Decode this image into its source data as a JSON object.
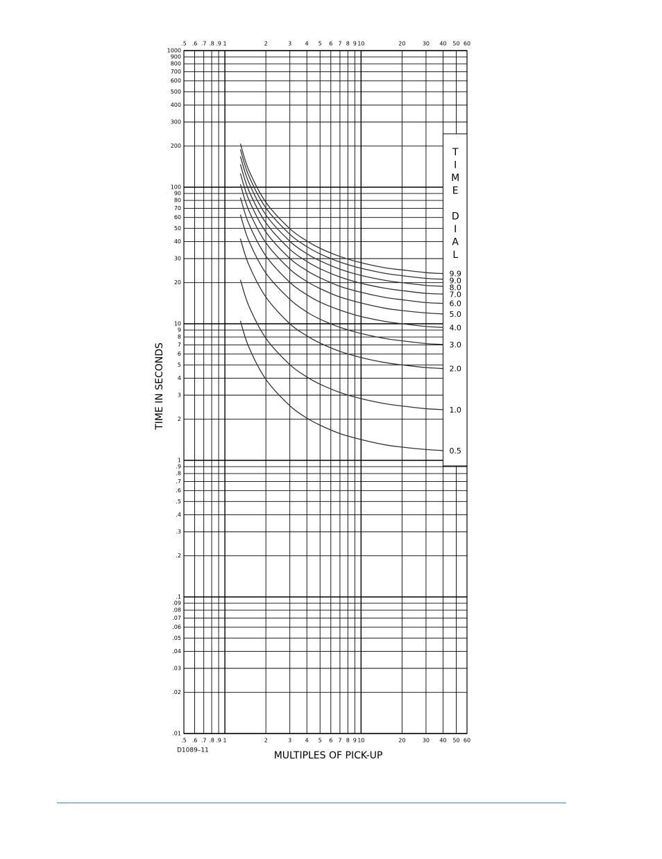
{
  "chart_data": {
    "type": "line",
    "xlabel": "MULTIPLES OF PICK-UP",
    "ylabel": "TIME IN SECONDS",
    "note": "D1089–11",
    "legend_title": "TIME DIAL",
    "log_x": true,
    "log_y": true,
    "grid": true,
    "xlim": [
      0.5,
      60
    ],
    "ylim": [
      0.01,
      1000
    ],
    "xticks": [
      {
        "value": 0.5,
        "label": ".5"
      },
      {
        "value": 0.6,
        "label": ".6"
      },
      {
        "value": 0.7,
        "label": ".7"
      },
      {
        "value": 0.8,
        "label": ".8"
      },
      {
        "value": 0.9,
        "label": ".9"
      },
      1,
      2,
      3,
      4,
      5,
      6,
      7,
      8,
      9,
      10,
      20,
      30,
      40,
      50,
      60
    ],
    "yticks": [
      {
        "value": 0.01,
        "label": ".01"
      },
      {
        "value": 0.02,
        "label": ".02"
      },
      {
        "value": 0.03,
        "label": ".03"
      },
      {
        "value": 0.04,
        "label": ".04"
      },
      {
        "value": 0.05,
        "label": ".05"
      },
      {
        "value": 0.06,
        "label": ".06"
      },
      {
        "value": 0.07,
        "label": ".07"
      },
      {
        "value": 0.08,
        "label": ".08"
      },
      {
        "value": 0.09,
        "label": ".09"
      },
      {
        "value": 0.1,
        "label": ".1"
      },
      {
        "value": 0.2,
        "label": ".2"
      },
      {
        "value": 0.3,
        "label": ".3"
      },
      {
        "value": 0.4,
        "label": ".4"
      },
      {
        "value": 0.5,
        "label": ".5"
      },
      {
        "value": 0.6,
        "label": ".6"
      },
      {
        "value": 0.7,
        "label": ".7"
      },
      {
        "value": 0.8,
        "label": ".8"
      },
      {
        "value": 0.9,
        "label": ".9"
      },
      1,
      2,
      3,
      4,
      5,
      6,
      7,
      8,
      9,
      10,
      20,
      30,
      40,
      50,
      60,
      70,
      80,
      90,
      100,
      200,
      300,
      400,
      500,
      600,
      700,
      800,
      900,
      1000
    ],
    "x": [
      1.3,
      1.5,
      2,
      3,
      4,
      5,
      7,
      10,
      15,
      20,
      30,
      40
    ],
    "series": [
      {
        "name": "0.5",
        "color": "#333333",
        "values": [
          10.5,
          6.74,
          3.92,
          2.51,
          2.04,
          1.81,
          1.57,
          1.42,
          1.3,
          1.25,
          1.2,
          1.18
        ]
      },
      {
        "name": "1.0",
        "color": "#333333",
        "values": [
          21.0,
          13.5,
          7.84,
          5.02,
          4.08,
          3.61,
          3.14,
          2.83,
          2.6,
          2.5,
          2.39,
          2.35
        ]
      },
      {
        "name": "2.0",
        "color": "#333333",
        "values": [
          42,
          27,
          15.7,
          10.0,
          8.16,
          7.22,
          6.28,
          5.66,
          5.2,
          5.0,
          4.78,
          4.7
        ]
      },
      {
        "name": "3.0",
        "color": "#333333",
        "values": [
          63,
          40.4,
          23.5,
          15.1,
          12.2,
          10.8,
          9.42,
          8.49,
          7.8,
          7.5,
          7.17,
          7.05
        ]
      },
      {
        "name": "4.0",
        "color": "#333333",
        "values": [
          84,
          53.9,
          31.4,
          20.1,
          16.3,
          14.4,
          12.6,
          11.3,
          10.4,
          10.0,
          9.56,
          9.4
        ]
      },
      {
        "name": "5.0",
        "color": "#333333",
        "values": [
          105,
          67.4,
          39.2,
          25.1,
          20.4,
          18.1,
          15.7,
          14.2,
          13.0,
          12.5,
          12.0,
          11.8
        ]
      },
      {
        "name": "6.0",
        "color": "#333333",
        "values": [
          126,
          80.9,
          47.0,
          30.1,
          24.5,
          21.7,
          18.8,
          17.0,
          15.6,
          15.0,
          14.3,
          14.1
        ]
      },
      {
        "name": "7.0",
        "color": "#333333",
        "values": [
          147,
          94.4,
          54.9,
          35.1,
          28.6,
          25.3,
          22.0,
          19.8,
          18.2,
          17.5,
          16.7,
          16.5
        ]
      },
      {
        "name": "8.0",
        "color": "#333333",
        "values": [
          168,
          108,
          62.7,
          40.2,
          32.6,
          28.9,
          25.1,
          22.6,
          20.8,
          20.0,
          19.1,
          18.8
        ]
      },
      {
        "name": "9.0",
        "color": "#333333",
        "values": [
          189,
          121,
          70.6,
          45.2,
          36.7,
          32.5,
          28.3,
          25.5,
          23.4,
          22.5,
          21.5,
          21.2
        ]
      },
      {
        "name": "9.9",
        "color": "#333333",
        "values": [
          208,
          133,
          77.6,
          49.7,
          40.4,
          35.7,
          31.1,
          28.0,
          25.7,
          24.8,
          23.7,
          23.3
        ]
      }
    ]
  }
}
